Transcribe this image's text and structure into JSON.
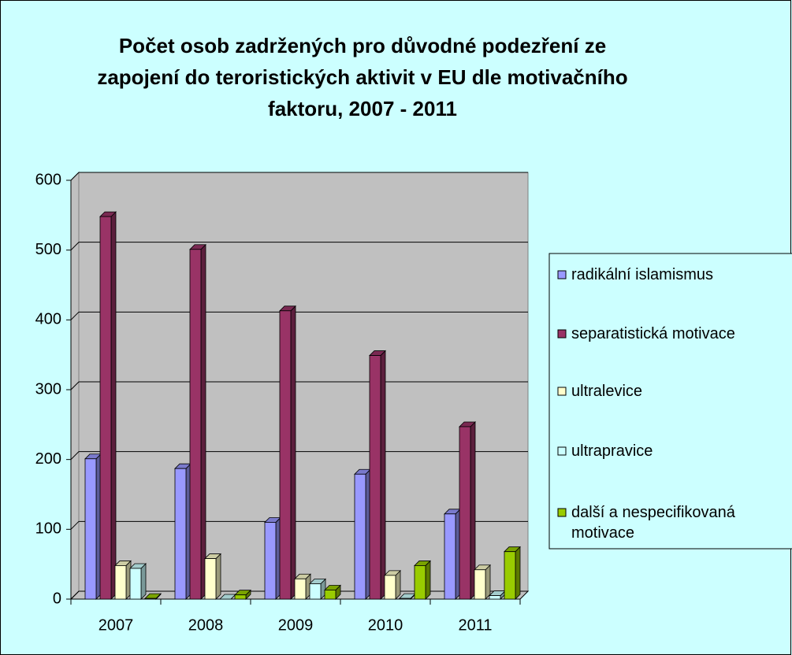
{
  "chart_data": {
    "type": "bar3d",
    "title": "Počet osob zadržených pro důvodné podezření ze zapojení do teroristických aktivit v EU dle motivačního faktoru, 2007 - 2011",
    "categories": [
      "2007",
      "2008",
      "2009",
      "2010",
      "2011"
    ],
    "series": [
      {
        "name": "radikální islamismus",
        "color": "#9999ff",
        "values": [
          201,
          187,
          110,
          179,
          122
        ]
      },
      {
        "name": "separatistická motivace",
        "color": "#993366",
        "values": [
          548,
          501,
          413,
          349,
          247
        ]
      },
      {
        "name": "ultralevice",
        "color": "#ffffcc",
        "values": [
          48,
          58,
          29,
          34,
          42
        ]
      },
      {
        "name": "ultrapravice",
        "color": "#ccffff",
        "values": [
          44,
          0,
          22,
          1,
          5
        ]
      },
      {
        "name": "další a nespecifikovaná motivace",
        "color": "#99cc00",
        "values": [
          1,
          6,
          13,
          48,
          68
        ]
      }
    ],
    "ylim": [
      0,
      600
    ],
    "yticks": [
      0,
      100,
      200,
      300,
      400,
      500,
      600
    ],
    "grid": true,
    "legend": "right"
  }
}
